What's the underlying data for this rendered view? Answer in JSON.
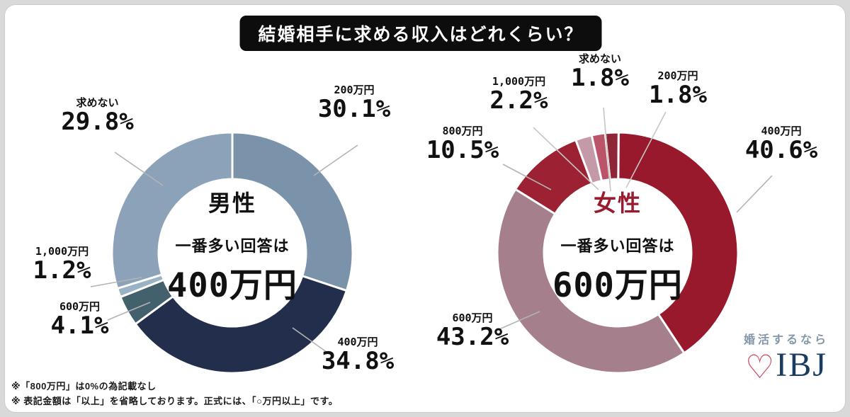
{
  "page": {
    "title": "結婚相手に求める収入はどれくらい？",
    "title_bg": "#0d0d0d",
    "title_color": "#ffffff",
    "background": "#ffffff"
  },
  "chart_data": [
    {
      "type": "pie",
      "subtype": "donut",
      "title": "男性",
      "center_label": "男性",
      "center_color": "#111111",
      "center_sub": "一番多い回答は",
      "center_value": "400万円",
      "rotation": 0,
      "inner_radius_ratio": 0.61,
      "slices": [
        {
          "key": "200man",
          "label": "200万円",
          "value": 30.1,
          "display": "30.1%",
          "color": "#7b93aa"
        },
        {
          "key": "400man",
          "label": "400万円",
          "value": 34.8,
          "display": "34.8%",
          "color": "#222e4c"
        },
        {
          "key": "600man",
          "label": "600万円",
          "value": 4.1,
          "display": "4.1%",
          "color": "#43606d"
        },
        {
          "key": "1000man",
          "label": "1,000万円",
          "value": 1.2,
          "display": "1.2%",
          "color": "#9bb1c4"
        },
        {
          "key": "motomenai",
          "label": "求めない",
          "value": 29.8,
          "display": "29.8%",
          "color": "#8ba2b8"
        }
      ]
    },
    {
      "type": "pie",
      "subtype": "donut",
      "title": "女性",
      "center_label": "女性",
      "center_color": "#9a1b2e",
      "center_sub": "一番多い回答は",
      "center_value": "600万円",
      "rotation": -6,
      "inner_radius_ratio": 0.61,
      "slices": [
        {
          "key": "200man",
          "label": "200万円",
          "value": 1.8,
          "display": "1.8%",
          "color": "#8e2638"
        },
        {
          "key": "400man",
          "label": "400万円",
          "value": 40.6,
          "display": "40.6%",
          "color": "#97192b"
        },
        {
          "key": "600man",
          "label": "600万円",
          "value": 43.2,
          "display": "43.2%",
          "color": "#a57f8b"
        },
        {
          "key": "800man",
          "label": "800万円",
          "value": 10.5,
          "display": "10.5%",
          "color": "#9b2133"
        },
        {
          "key": "1000man",
          "label": "1,000万円",
          "value": 2.2,
          "display": "2.2%",
          "color": "#c49aa8"
        },
        {
          "key": "motomenai",
          "label": "求めない",
          "value": 1.8,
          "display": "1.8%",
          "color": "#bb5468"
        }
      ]
    }
  ],
  "notes": [
    "※「800万円」は0%の為記載なし",
    "※ 表記金額は「以上」を省略しております。正式には、「○万円以上」です。"
  ],
  "logo": {
    "tagline": "婚活するなら",
    "name": "IBJ",
    "heart": "♡",
    "heart_color": "#cf4058",
    "name_color": "#1b3c60",
    "tagline_color": "#8396a9"
  }
}
